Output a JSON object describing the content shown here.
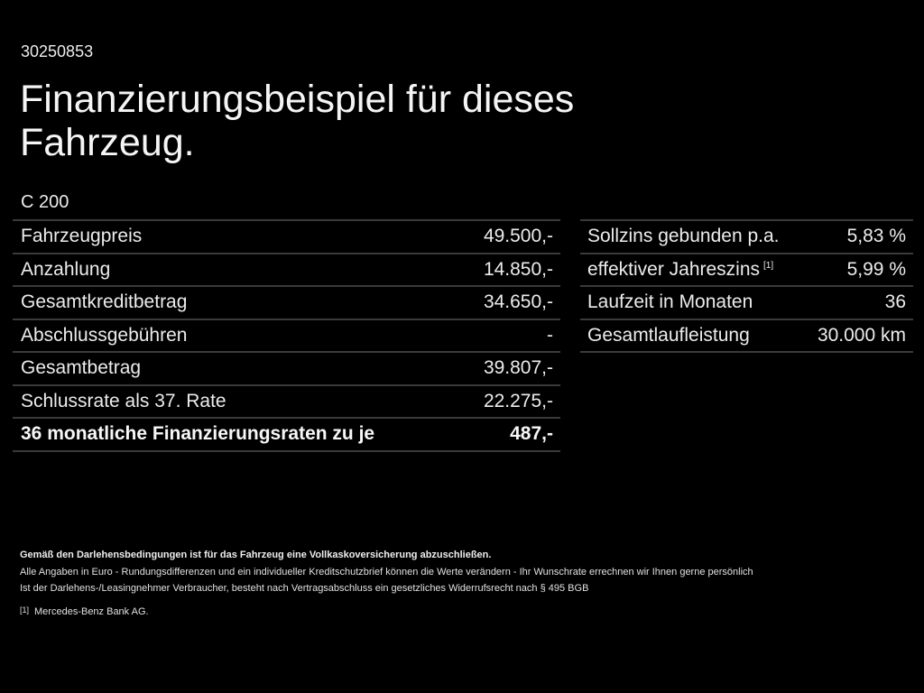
{
  "header": {
    "vehicle_id": "30250853",
    "title": "Finanzierungsbeispiel für dieses Fahrzeug.",
    "model": "C 200"
  },
  "left_table": {
    "rows": [
      {
        "label": "Fahrzeugpreis",
        "value": "49.500,-"
      },
      {
        "label": "Anzahlung",
        "value": "14.850,-"
      },
      {
        "label": "Gesamtkreditbetrag",
        "value": "34.650,-"
      },
      {
        "label": "Abschlussgebühren",
        "value": "-"
      },
      {
        "label": "Gesamtbetrag",
        "value": "39.807,-"
      },
      {
        "label": "Schlussrate als 37. Rate",
        "value": "22.275,-"
      },
      {
        "label": "36 monatliche Finanzierungsraten zu je",
        "value": "487,-"
      }
    ]
  },
  "right_table": {
    "rows": [
      {
        "label": "Sollzins gebunden p.a.",
        "value": "5,83 %"
      },
      {
        "label": "effektiver Jahreszins",
        "footnote": "[1]",
        "value": "5,99 %"
      },
      {
        "label": "Laufzeit in Monaten",
        "value": "36"
      },
      {
        "label": "Gesamtlaufleistung",
        "value": "30.000 km"
      }
    ]
  },
  "notes": {
    "insurance": "Gemäß den Darlehensbedingungen ist für das Fahrzeug eine Vollkaskoversicherung abzuschließen.",
    "disclaimer": "Alle Angaben in Euro - Rundungsdifferenzen und ein individueller Kreditschutzbrief können die Werte verändern - Ihr Wunschrate errechnen wir Ihnen gerne persönlich",
    "withdrawal": "Ist der Darlehens-/Leasingnehmer Verbraucher, besteht nach Vertragsabschluss ein gesetzliches Widerrufsrecht nach § 495 BGB",
    "footnote_mark": "[1]",
    "footnote_text": "Mercedes-Benz Bank AG."
  },
  "colors": {
    "background": "#000000",
    "text": "#f2f2f2",
    "divider": "#3a3a3a"
  }
}
